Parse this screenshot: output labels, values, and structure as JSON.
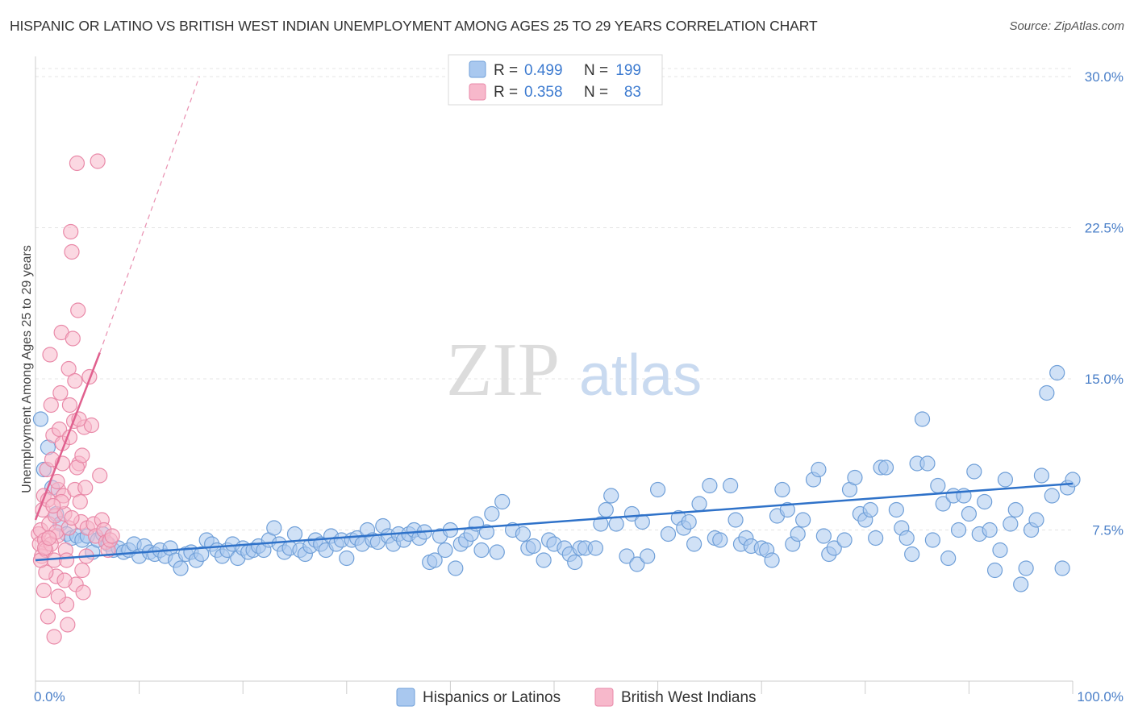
{
  "chart_data": {
    "type": "scatter",
    "title": "HISPANIC OR LATINO VS BRITISH WEST INDIAN UNEMPLOYMENT AMONG AGES 25 TO 29 YEARS CORRELATION CHART",
    "source": "Source: ZipAtlas.com",
    "watermark": {
      "zip": "ZIP",
      "atlas": "atlas"
    },
    "ylabel": "Unemployment Among Ages 25 to 29 years",
    "xlim": [
      0,
      100
    ],
    "ylim": [
      0,
      31
    ],
    "x_tick_labels": [
      "0.0%",
      "100.0%"
    ],
    "y_ticks": [
      {
        "value": 7.5,
        "label": "7.5%"
      },
      {
        "value": 15.0,
        "label": "15.0%"
      },
      {
        "value": 22.5,
        "label": "22.5%"
      },
      {
        "value": 30.0,
        "label": "30.0%"
      }
    ],
    "legend": {
      "r_label": "R =",
      "n_label": "N =",
      "rows": [
        {
          "r": "0.499",
          "n": "199"
        },
        {
          "r": "0.358",
          "n": "83"
        }
      ]
    },
    "colors": {
      "blue_fill": "#a9c8ef",
      "blue_stroke": "#6f9fd8",
      "blue_line": "#2f72c9",
      "pink_fill": "#f7b8cb",
      "pink_stroke": "#e989a8",
      "pink_line": "#e0608e"
    },
    "series": [
      {
        "name": "Hispanics or Latinos",
        "trend": {
          "x0": 0,
          "y0": 6.0,
          "x1": 100,
          "y1": 9.8
        },
        "points": [
          [
            0.5,
            13
          ],
          [
            0.8,
            10.5
          ],
          [
            1.2,
            11.6
          ],
          [
            1.6,
            9.6
          ],
          [
            2.0,
            8.3
          ],
          [
            2.4,
            7.8
          ],
          [
            3.0,
            7.3
          ],
          [
            3.5,
            7.1
          ],
          [
            4.0,
            7.2
          ],
          [
            4.5,
            7.0
          ],
          [
            5.0,
            7.2
          ],
          [
            5.5,
            6.4
          ],
          [
            6.0,
            7.0
          ],
          [
            6.5,
            7.3
          ],
          [
            7.0,
            6.8
          ],
          [
            7.5,
            6.5
          ],
          [
            8.0,
            6.6
          ],
          [
            8.5,
            6.4
          ],
          [
            9.0,
            6.5
          ],
          [
            9.5,
            6.8
          ],
          [
            10.0,
            6.2
          ],
          [
            10.5,
            6.7
          ],
          [
            11.0,
            6.4
          ],
          [
            11.5,
            6.3
          ],
          [
            12.0,
            6.5
          ],
          [
            12.5,
            6.2
          ],
          [
            13.0,
            6.6
          ],
          [
            13.5,
            6.0
          ],
          [
            14.0,
            5.6
          ],
          [
            14.5,
            6.3
          ],
          [
            15.0,
            6.4
          ],
          [
            15.5,
            6.0
          ],
          [
            16.0,
            6.3
          ],
          [
            16.5,
            7.0
          ],
          [
            17.0,
            6.8
          ],
          [
            17.5,
            6.5
          ],
          [
            18.0,
            6.2
          ],
          [
            18.5,
            6.5
          ],
          [
            19.0,
            6.8
          ],
          [
            19.5,
            6.1
          ],
          [
            20.0,
            6.6
          ],
          [
            20.5,
            6.4
          ],
          [
            21.0,
            6.5
          ],
          [
            21.5,
            6.7
          ],
          [
            22.0,
            6.5
          ],
          [
            22.5,
            7.0
          ],
          [
            23.0,
            7.6
          ],
          [
            23.5,
            6.8
          ],
          [
            24.0,
            6.4
          ],
          [
            24.5,
            6.6
          ],
          [
            25.0,
            7.3
          ],
          [
            25.5,
            6.5
          ],
          [
            26.0,
            6.3
          ],
          [
            26.5,
            6.7
          ],
          [
            27.0,
            7.0
          ],
          [
            27.5,
            6.8
          ],
          [
            28.0,
            6.5
          ],
          [
            28.5,
            7.2
          ],
          [
            29.0,
            6.8
          ],
          [
            29.5,
            7.0
          ],
          [
            30.0,
            6.1
          ],
          [
            30.5,
            7.0
          ],
          [
            31.0,
            7.1
          ],
          [
            31.5,
            6.8
          ],
          [
            32.0,
            7.5
          ],
          [
            32.5,
            7.0
          ],
          [
            33.0,
            6.9
          ],
          [
            33.5,
            7.7
          ],
          [
            34.0,
            7.2
          ],
          [
            34.5,
            6.8
          ],
          [
            35.0,
            7.3
          ],
          [
            35.5,
            7.0
          ],
          [
            36.0,
            7.3
          ],
          [
            36.5,
            7.5
          ],
          [
            37.0,
            7.1
          ],
          [
            37.5,
            7.4
          ],
          [
            38.0,
            5.9
          ],
          [
            38.5,
            6.0
          ],
          [
            39.0,
            7.2
          ],
          [
            39.5,
            6.5
          ],
          [
            40.0,
            7.5
          ],
          [
            40.5,
            5.6
          ],
          [
            41.0,
            6.8
          ],
          [
            41.5,
            7.0
          ],
          [
            42.0,
            7.3
          ],
          [
            42.5,
            7.8
          ],
          [
            43.0,
            6.5
          ],
          [
            43.5,
            7.4
          ],
          [
            44.0,
            8.3
          ],
          [
            44.5,
            6.4
          ],
          [
            45.0,
            8.9
          ],
          [
            46.0,
            7.5
          ],
          [
            47.0,
            7.3
          ],
          [
            47.5,
            6.6
          ],
          [
            48.0,
            6.7
          ],
          [
            49.0,
            6.0
          ],
          [
            49.5,
            7.0
          ],
          [
            50.0,
            6.8
          ],
          [
            51.0,
            6.6
          ],
          [
            51.5,
            6.3
          ],
          [
            52.0,
            5.9
          ],
          [
            52.5,
            6.6
          ],
          [
            53.0,
            6.6
          ],
          [
            54.0,
            6.6
          ],
          [
            54.5,
            7.8
          ],
          [
            55.0,
            8.5
          ],
          [
            55.5,
            9.2
          ],
          [
            56.0,
            7.8
          ],
          [
            57.0,
            6.2
          ],
          [
            57.5,
            8.3
          ],
          [
            58.0,
            5.8
          ],
          [
            58.5,
            7.9
          ],
          [
            59.0,
            6.2
          ],
          [
            60.0,
            9.5
          ],
          [
            61.0,
            7.3
          ],
          [
            62.0,
            8.1
          ],
          [
            62.5,
            7.6
          ],
          [
            63.0,
            7.9
          ],
          [
            63.5,
            6.8
          ],
          [
            64.0,
            8.8
          ],
          [
            65.0,
            9.7
          ],
          [
            65.5,
            7.1
          ],
          [
            66.0,
            7.0
          ],
          [
            67.0,
            9.7
          ],
          [
            67.5,
            8.0
          ],
          [
            68.0,
            6.8
          ],
          [
            68.5,
            7.1
          ],
          [
            69.0,
            6.7
          ],
          [
            70.0,
            6.6
          ],
          [
            70.5,
            6.5
          ],
          [
            71.0,
            6.0
          ],
          [
            71.5,
            8.2
          ],
          [
            72.0,
            9.5
          ],
          [
            72.5,
            8.5
          ],
          [
            73.0,
            6.8
          ],
          [
            73.5,
            7.3
          ],
          [
            74.0,
            8.0
          ],
          [
            75.0,
            10.0
          ],
          [
            75.5,
            10.5
          ],
          [
            76.0,
            7.2
          ],
          [
            76.5,
            6.3
          ],
          [
            77.0,
            6.6
          ],
          [
            78.0,
            7.0
          ],
          [
            78.5,
            9.5
          ],
          [
            79.0,
            10.1
          ],
          [
            79.5,
            8.3
          ],
          [
            80.0,
            8.0
          ],
          [
            80.5,
            8.5
          ],
          [
            81.0,
            7.1
          ],
          [
            81.5,
            10.6
          ],
          [
            82.0,
            10.6
          ],
          [
            83.0,
            8.5
          ],
          [
            83.5,
            7.6
          ],
          [
            84.0,
            7.1
          ],
          [
            84.5,
            6.3
          ],
          [
            85.0,
            10.8
          ],
          [
            85.5,
            13.0
          ],
          [
            86.0,
            10.8
          ],
          [
            86.5,
            7.0
          ],
          [
            87.0,
            9.7
          ],
          [
            87.5,
            8.8
          ],
          [
            88.0,
            6.1
          ],
          [
            88.5,
            9.2
          ],
          [
            89.0,
            7.5
          ],
          [
            89.5,
            9.2
          ],
          [
            90.0,
            8.3
          ],
          [
            90.5,
            10.4
          ],
          [
            91.0,
            7.3
          ],
          [
            91.5,
            8.9
          ],
          [
            92.0,
            7.5
          ],
          [
            92.5,
            5.5
          ],
          [
            93.0,
            6.5
          ],
          [
            93.5,
            10.0
          ],
          [
            94.0,
            7.8
          ],
          [
            94.5,
            8.5
          ],
          [
            95.0,
            4.8
          ],
          [
            95.5,
            5.6
          ],
          [
            96.0,
            7.5
          ],
          [
            96.5,
            8.0
          ],
          [
            97.0,
            10.2
          ],
          [
            97.5,
            14.3
          ],
          [
            98.0,
            9.2
          ],
          [
            98.5,
            15.3
          ],
          [
            99.0,
            5.6
          ],
          [
            99.5,
            9.6
          ],
          [
            100.0,
            10.0
          ]
        ]
      },
      {
        "name": "British West Indians",
        "trend": {
          "x0": 0,
          "y0": 8.0,
          "x1": 6.2,
          "y1": 16.3
        },
        "trend_ext": {
          "x0": 6.2,
          "y0": 16.3,
          "x1": 15.8,
          "y1": 30.0
        },
        "points": [
          [
            0.3,
            7.3
          ],
          [
            0.4,
            6.8
          ],
          [
            0.5,
            7.5
          ],
          [
            0.6,
            6.2
          ],
          [
            0.7,
            8.5
          ],
          [
            0.8,
            9.2
          ],
          [
            0.9,
            7.0
          ],
          [
            1.0,
            6.5
          ],
          [
            1.1,
            10.5
          ],
          [
            1.2,
            9.0
          ],
          [
            1.3,
            7.8
          ],
          [
            1.4,
            16.2
          ],
          [
            1.5,
            13.7
          ],
          [
            1.6,
            11.0
          ],
          [
            1.7,
            12.2
          ],
          [
            1.8,
            6.0
          ],
          [
            1.9,
            8.2
          ],
          [
            2.0,
            5.2
          ],
          [
            2.1,
            7.2
          ],
          [
            2.2,
            9.5
          ],
          [
            2.3,
            12.5
          ],
          [
            2.4,
            14.3
          ],
          [
            2.5,
            17.3
          ],
          [
            2.6,
            11.8
          ],
          [
            2.7,
            9.2
          ],
          [
            2.8,
            8.3
          ],
          [
            2.9,
            6.5
          ],
          [
            3.0,
            3.8
          ],
          [
            3.1,
            2.8
          ],
          [
            3.2,
            15.5
          ],
          [
            3.3,
            13.7
          ],
          [
            3.4,
            22.3
          ],
          [
            3.5,
            21.3
          ],
          [
            3.6,
            17.0
          ],
          [
            3.7,
            12.9
          ],
          [
            3.8,
            9.5
          ],
          [
            3.9,
            4.8
          ],
          [
            4.0,
            25.7
          ],
          [
            4.1,
            18.4
          ],
          [
            4.2,
            10.8
          ],
          [
            4.3,
            8.9
          ],
          [
            4.4,
            7.9
          ],
          [
            4.5,
            5.5
          ],
          [
            4.6,
            4.4
          ],
          [
            4.7,
            12.6
          ],
          [
            4.8,
            9.6
          ],
          [
            4.9,
            6.2
          ],
          [
            5.0,
            7.6
          ],
          [
            5.2,
            15.1
          ],
          [
            5.4,
            12.7
          ],
          [
            5.6,
            7.8
          ],
          [
            5.8,
            7.2
          ],
          [
            6.0,
            25.8
          ],
          [
            6.2,
            10.2
          ],
          [
            6.4,
            8.0
          ],
          [
            6.6,
            7.5
          ],
          [
            6.8,
            6.9
          ],
          [
            7.0,
            6.5
          ],
          [
            7.2,
            7.0
          ],
          [
            7.4,
            7.2
          ],
          [
            1.0,
            5.4
          ],
          [
            1.5,
            6.8
          ],
          [
            2.0,
            7.4
          ],
          [
            2.5,
            8.9
          ],
          [
            3.0,
            6.0
          ],
          [
            0.8,
            4.5
          ],
          [
            1.2,
            3.2
          ],
          [
            1.8,
            2.2
          ],
          [
            2.2,
            4.2
          ],
          [
            2.8,
            5.0
          ],
          [
            3.2,
            7.6
          ],
          [
            3.5,
            8.1
          ],
          [
            4.0,
            10.6
          ],
          [
            4.5,
            11.2
          ],
          [
            0.5,
            6.0
          ],
          [
            0.9,
            6.6
          ],
          [
            1.3,
            7.1
          ],
          [
            1.7,
            8.7
          ],
          [
            2.1,
            9.9
          ],
          [
            2.6,
            10.8
          ],
          [
            3.3,
            12.1
          ],
          [
            3.8,
            14.9
          ],
          [
            4.2,
            13.0
          ]
        ]
      }
    ],
    "bottom_legend": [
      "Hispanics or Latinos",
      "British West Indians"
    ]
  }
}
